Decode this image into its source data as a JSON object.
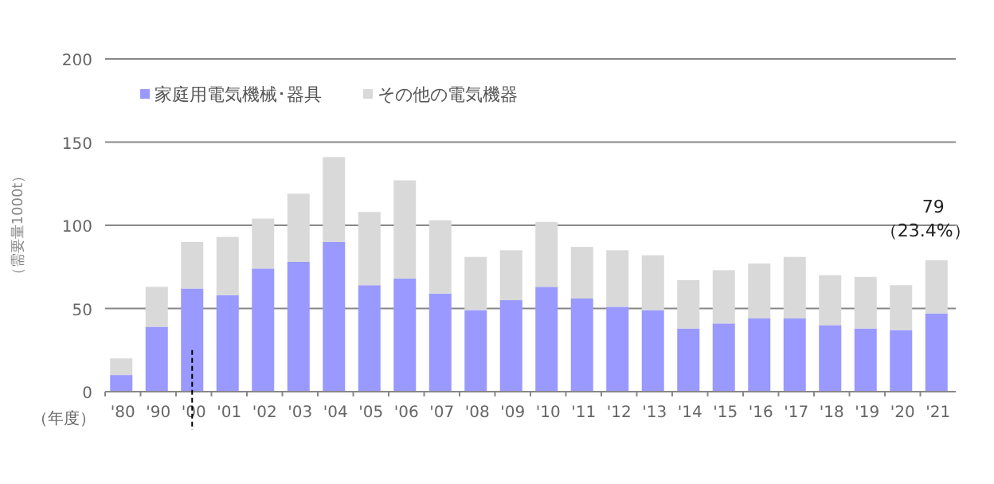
{
  "chart_data": {
    "type": "bar",
    "stacked": true,
    "categories": [
      "'80",
      "'90",
      "'00",
      "'01",
      "'02",
      "'03",
      "'04",
      "'05",
      "'06",
      "'07",
      "'08",
      "'09",
      "'10",
      "'11",
      "'12",
      "'13",
      "'14",
      "'15",
      "'16",
      "'17",
      "'18",
      "'19",
      "'20",
      "'21"
    ],
    "series": [
      {
        "name": "家庭用電気機械･器具",
        "color": "#9999ff",
        "values": [
          10,
          39,
          62,
          58,
          74,
          78,
          90,
          64,
          68,
          59,
          49,
          55,
          63,
          56,
          51,
          49,
          38,
          41,
          44,
          44,
          40,
          38,
          37,
          47
        ]
      },
      {
        "name": "その他の電気機器",
        "color": "#d9d9d9",
        "values": [
          10,
          24,
          28,
          35,
          30,
          41,
          51,
          44,
          59,
          44,
          32,
          30,
          39,
          31,
          34,
          33,
          29,
          32,
          33,
          37,
          30,
          31,
          27,
          32
        ]
      }
    ],
    "ylim": [
      0,
      200
    ],
    "yticks": [
      0,
      50,
      100,
      150,
      200
    ],
    "grid": "y",
    "legend": "top left",
    "ylabel": "（需要量1000t）",
    "xlabel": "（年度）",
    "ref_lines": [
      {
        "axis": "x",
        "value": "'00",
        "line_style": "dashed",
        "color": "#000000"
      }
    ],
    "annotations": [
      {
        "text": "79",
        "x": "'21",
        "y": 79
      },
      {
        "text": "（23.4%）",
        "x": "'21",
        "y": 79
      }
    ]
  }
}
